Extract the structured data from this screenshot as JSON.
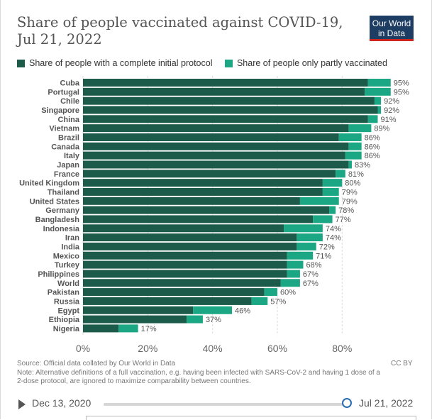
{
  "header": {
    "title": "Share of people vaccinated against COVID-19, Jul 21, 2022",
    "logo_line1": "Our World",
    "logo_line2": "in Data"
  },
  "colors": {
    "complete": "#1c5b4a",
    "partial": "#1ba784",
    "grid": "#dddddd",
    "logo_bg": "#1d3d63",
    "logo_accent": "#ce261e"
  },
  "chart_data": {
    "type": "bar",
    "orientation": "horizontal",
    "stacked": true,
    "title": "Share of people vaccinated against COVID-19, Jul 21, 2022",
    "categories": [
      "Cuba",
      "Portugal",
      "Chile",
      "Singapore",
      "China",
      "Vietnam",
      "Brazil",
      "Canada",
      "Italy",
      "Japan",
      "France",
      "United Kingdom",
      "Thailand",
      "United States",
      "Germany",
      "Bangladesh",
      "Indonesia",
      "Iran",
      "India",
      "Mexico",
      "Turkey",
      "Philippines",
      "World",
      "Pakistan",
      "Russia",
      "Egypt",
      "Ethiopia",
      "Nigeria"
    ],
    "series": [
      {
        "name": "Share of people with a complete initial protocol",
        "values": [
          88,
          87,
          90,
          91,
          88,
          82,
          79,
          82,
          81,
          82,
          78,
          74,
          74,
          67,
          76,
          71,
          62,
          66,
          66,
          63,
          63,
          63,
          61,
          56,
          52,
          34,
          32,
          11
        ]
      },
      {
        "name": "Share of people only partly vaccinated",
        "values": [
          7,
          8,
          2,
          1,
          3,
          7,
          7,
          4,
          5,
          1,
          3,
          6,
          5,
          12,
          2,
          6,
          12,
          8,
          6,
          8,
          5,
          4,
          6,
          4,
          5,
          12,
          5,
          6
        ]
      }
    ],
    "total_labels": [
      "95%",
      "95%",
      "92%",
      "92%",
      "91%",
      "89%",
      "86%",
      "86%",
      "86%",
      "83%",
      "81%",
      "80%",
      "79%",
      "79%",
      "78%",
      "77%",
      "74%",
      "74%",
      "72%",
      "71%",
      "68%",
      "67%",
      "67%",
      "60%",
      "57%",
      "46%",
      "37%",
      "17%"
    ],
    "x_ticks": [
      0,
      20,
      40,
      60,
      80
    ],
    "x_tick_labels": [
      "0%",
      "20%",
      "40%",
      "60%",
      "80%"
    ],
    "xlim": [
      0,
      95
    ],
    "grid": true,
    "legend_position": "top-left"
  },
  "footer": {
    "source": "Source: Official data collated by Our World in Data",
    "note": "Note: Alternative definitions of a full vaccination, e.g. having been infected with SARS-CoV-2 and having 1 dose of a 2-dose protocol, are ignored to maximize comparability between countries.",
    "license": "CC BY"
  },
  "timeline": {
    "start_date": "Dec 13, 2020",
    "end_date": "Jul 21, 2022",
    "position": 1.0
  }
}
